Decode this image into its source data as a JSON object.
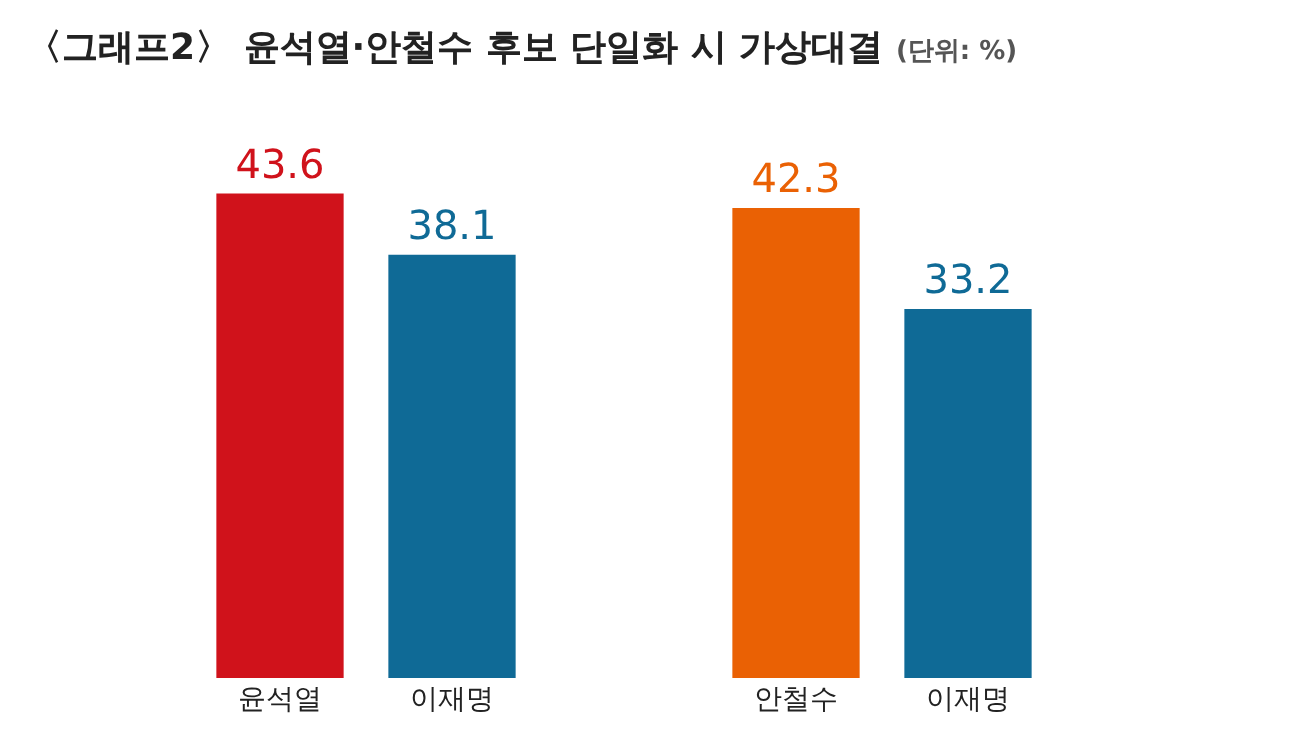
{
  "chart_data": {
    "type": "bar",
    "title": "〈그래프2〉 윤석열·안철수 후보 단일화 시 가상대결",
    "subtitle": "(단위: %)",
    "categories": [
      "윤석열",
      "이재명",
      null,
      "안철수",
      "이재명"
    ],
    "values": [
      43.6,
      38.1,
      null,
      42.3,
      33.2
    ],
    "colors": [
      "#d0121b",
      "#0f6a96",
      "#0f6a96",
      "#ea6104",
      "#0f6a96"
    ],
    "data_labels": true,
    "tick_labels": "x"
  }
}
